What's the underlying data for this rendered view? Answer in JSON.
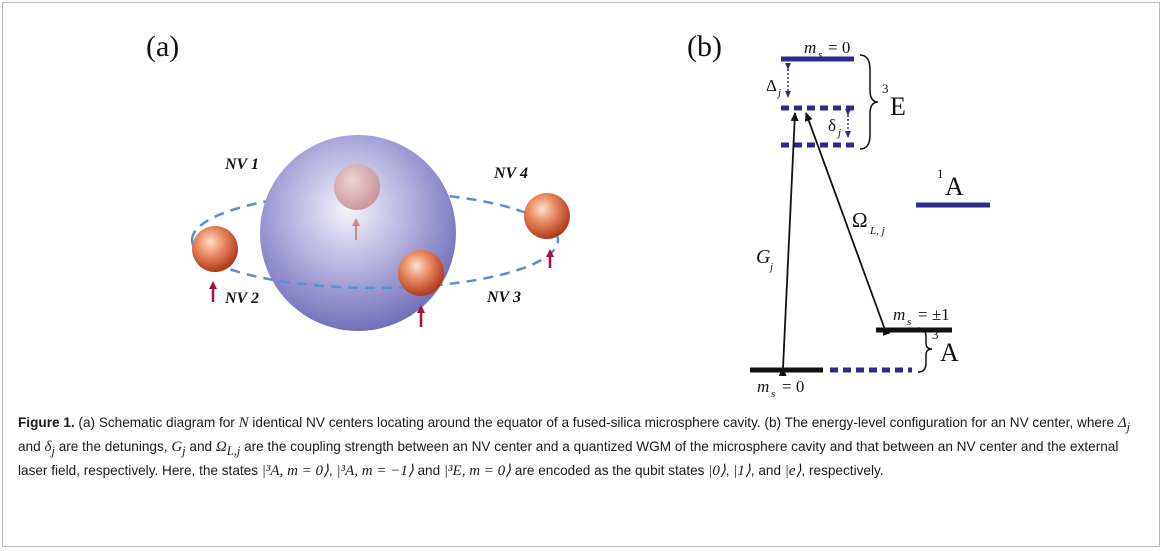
{
  "figure": {
    "panel_a": {
      "label": "(a)",
      "nv_labels": [
        "NV 1",
        "NV 2",
        "NV 3",
        "NV 4"
      ]
    },
    "panel_b": {
      "label": "(b)",
      "excited_state": {
        "level": "m",
        "level_sub": "s",
        "level_val": "= 0",
        "manifold": "E",
        "manifold_sup": "3"
      },
      "singlet": {
        "sup": "1",
        "name": "A"
      },
      "ground_plus": {
        "sym": "m",
        "sub": "s",
        "val": "= ±1"
      },
      "ground_zero": {
        "sym": "m",
        "sub": "s",
        "val": "= 0"
      },
      "ground_manifold": {
        "sup": "3",
        "name": "A"
      },
      "delta_big": "Δ",
      "delta_big_sub": "j",
      "delta_small": "δ",
      "delta_small_sub": "j",
      "coupling_g": "G",
      "coupling_g_sub": "j",
      "coupling_omega": "Ω",
      "coupling_omega_sub": "L, j"
    },
    "caption": {
      "label": "Figure 1.",
      "p1": " (a) Schematic diagram for ",
      "N": "N",
      "p2": " identical NV centers locating around the equator of a fused-silica microsphere cavity. (b) The energy-level configuration for an NV center, where ",
      "p3": " and ",
      "p4": " are the detunings, ",
      "p5": " and ",
      "p6": " are the coupling strength between an NV center and a quantized WGM of the microsphere cavity and that between an NV center and the external laser field, respectively. Here, the states ",
      "p7": ", ",
      "p8": " and ",
      "p9": " are encoded as the qubit states ",
      "p10": ", ",
      "p11": ", and ",
      "p12": ", respectively.",
      "sym_Delta": "Δ",
      "sym_delta": "δ",
      "sym_G": "G",
      "sym_Omega": "Ω",
      "sub_j": "j",
      "sub_Lj": "L,j",
      "state1": "|³A, m = 0⟩",
      "state2": "|³A, m = −1⟩",
      "state3": "|³E, m = 0⟩",
      "q0": "|0⟩",
      "q1": "|1⟩",
      "qe": "|e⟩"
    }
  }
}
